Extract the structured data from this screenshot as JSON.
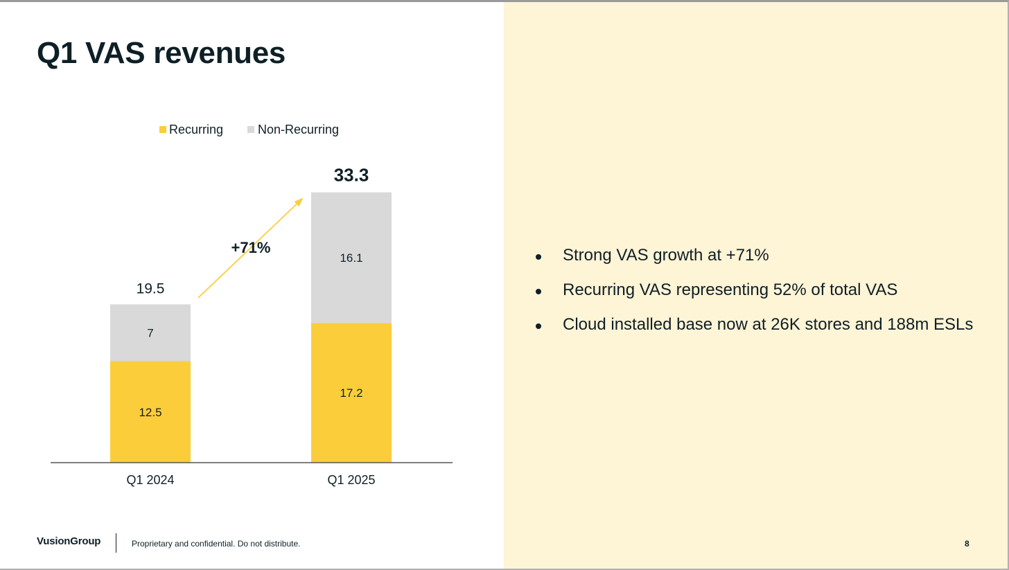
{
  "slide": {
    "title": "Q1 VAS revenues",
    "page_number": "8"
  },
  "footer": {
    "logo": "VusionGroup",
    "text": "Proprietary and confidential. Do not distribute."
  },
  "bullets": [
    "Strong VAS growth at +71%",
    "Recurring VAS representing 52% of total VAS",
    "Cloud installed base now at 26K stores and 188m ESLs"
  ],
  "colors": {
    "recurring": "#fbcd3b",
    "non_recurring": "#d9d9d9",
    "arrow": "#fbcd3b",
    "right_panel": "#fef4d6",
    "text": "#0f1f26"
  },
  "chart_data": {
    "type": "bar",
    "stacked": true,
    "categories": [
      "Q1 2024",
      "Q1 2025"
    ],
    "series": [
      {
        "name": "Recurring",
        "values": [
          12.5,
          17.2
        ],
        "labels": [
          "12.5",
          "17.2"
        ]
      },
      {
        "name": "Non-Recurring",
        "values": [
          7,
          16.1
        ],
        "labels": [
          "7",
          "16.1"
        ]
      }
    ],
    "totals": [
      19.5,
      33.3
    ],
    "total_labels": [
      "19.5",
      "33.3"
    ],
    "total_label_bold": [
      false,
      true
    ],
    "legend_position": "top",
    "growth_annotation": "+71%",
    "grid": false,
    "ylim": [
      0,
      34
    ]
  }
}
